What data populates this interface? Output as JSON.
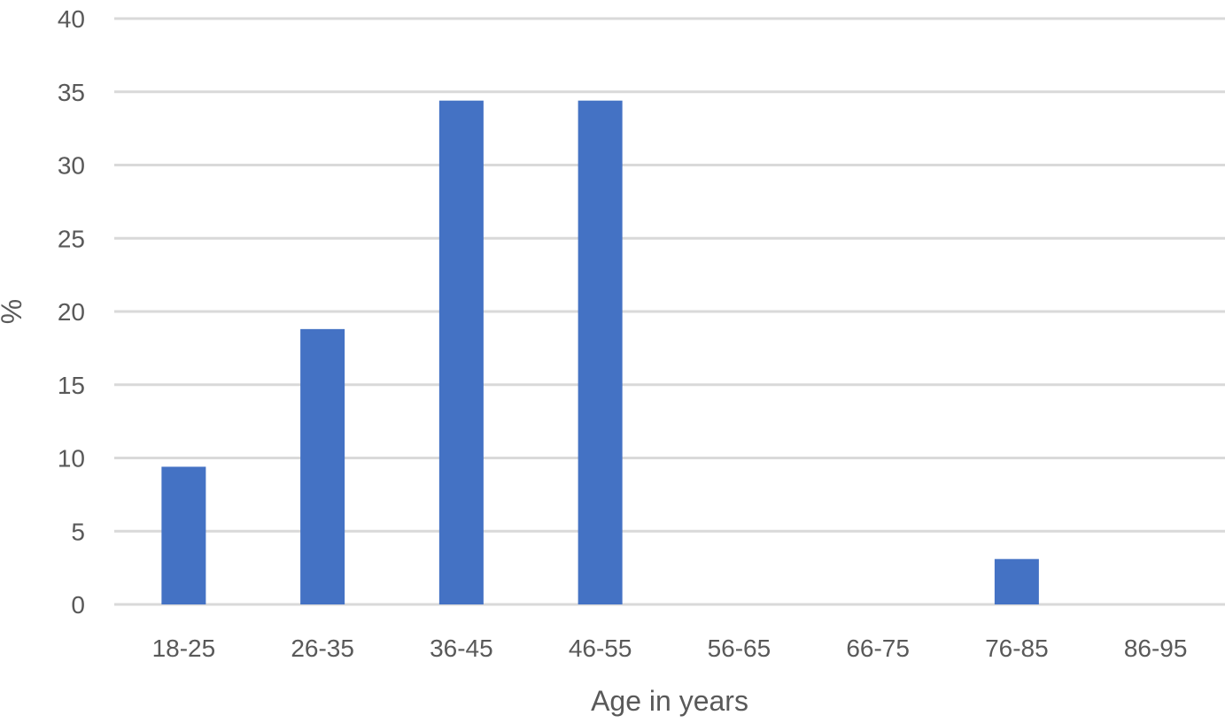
{
  "chart_data": {
    "type": "bar",
    "categories": [
      "18-25",
      "26-35",
      "36-45",
      "46-55",
      "56-65",
      "66-75",
      "76-85",
      "86-95"
    ],
    "values": [
      9.4,
      18.8,
      34.4,
      34.4,
      0,
      0,
      3.1,
      0
    ],
    "xlabel": "Age in years",
    "ylabel": "%",
    "ylim": [
      0,
      40
    ],
    "yticks": [
      0,
      5,
      10,
      15,
      20,
      25,
      30,
      35,
      40
    ],
    "grid": true,
    "legend": "none",
    "bar_color": "#4472C4",
    "grid_color": "#D9D9D9",
    "text_color": "#595959"
  }
}
